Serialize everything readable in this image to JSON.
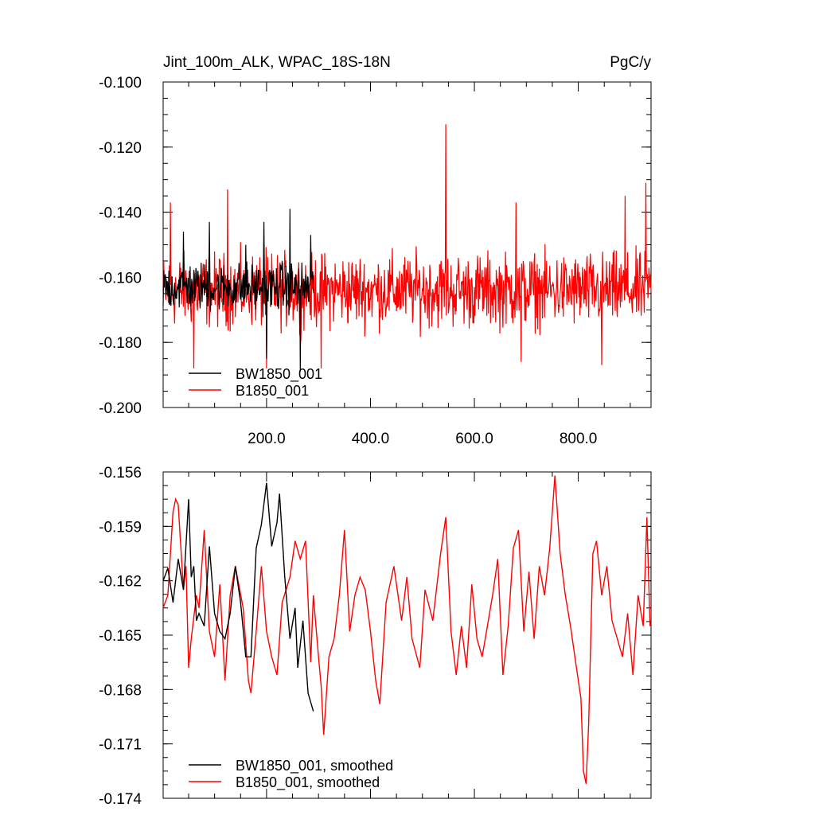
{
  "header": {
    "title_left": "Jint_100m_ALK, WPAC_18S-18N",
    "title_right": "PgC/y"
  },
  "colors": {
    "BW1850_001": "#000000",
    "B1850_001": "#ff0000"
  },
  "chart_data": [
    {
      "type": "line",
      "title": "Jint_100m_ALK, WPAC_18S-18N",
      "units": "PgC/y",
      "xlim": [
        1,
        940
      ],
      "ylim": [
        -0.2,
        -0.1
      ],
      "xticks": [
        200,
        400,
        600,
        800
      ],
      "xtick_labels": [
        "200.0",
        "400.0",
        "600.0",
        "800.0"
      ],
      "yticks": [
        -0.1,
        -0.12,
        -0.14,
        -0.16,
        -0.18,
        -0.2
      ],
      "ytick_labels": [
        "-0.100",
        "-0.120",
        "-0.140",
        "-0.160",
        "-0.180",
        "-0.200"
      ],
      "grid": false,
      "legend": "bottom-left",
      "series": [
        {
          "name": "BW1850_001",
          "color": "#000000",
          "x_range": [
            1,
            290
          ],
          "approx_mean": -0.163,
          "approx_range": [
            -0.189,
            -0.139
          ],
          "keypoints": [
            {
              "x": 40,
              "y": -0.146
            },
            {
              "x": 90,
              "y": -0.143
            },
            {
              "x": 160,
              "y": -0.15
            },
            {
              "x": 195,
              "y": -0.143
            },
            {
              "x": 200,
              "y": -0.185
            },
            {
              "x": 245,
              "y": -0.139
            },
            {
              "x": 265,
              "y": -0.189
            },
            {
              "x": 285,
              "y": -0.147
            }
          ]
        },
        {
          "name": "B1850_001",
          "color": "#ff0000",
          "x_range": [
            1,
            940
          ],
          "approx_mean": -0.164,
          "approx_range": [
            -0.188,
            -0.113
          ],
          "keypoints": [
            {
              "x": 15,
              "y": -0.137
            },
            {
              "x": 60,
              "y": -0.188
            },
            {
              "x": 125,
              "y": -0.133
            },
            {
              "x": 200,
              "y": -0.19
            },
            {
              "x": 305,
              "y": -0.19
            },
            {
              "x": 545,
              "y": -0.113
            },
            {
              "x": 680,
              "y": -0.137
            },
            {
              "x": 690,
              "y": -0.186
            },
            {
              "x": 845,
              "y": -0.187
            },
            {
              "x": 890,
              "y": -0.135
            },
            {
              "x": 930,
              "y": -0.131
            }
          ]
        }
      ]
    },
    {
      "type": "line",
      "xlim": [
        1,
        940
      ],
      "ylim": [
        -0.174,
        -0.156
      ],
      "xticks": [
        200,
        400,
        600,
        800
      ],
      "yticks": [
        -0.156,
        -0.159,
        -0.162,
        -0.165,
        -0.168,
        -0.171,
        -0.174
      ],
      "ytick_labels": [
        "-0.156",
        "-0.159",
        "-0.162",
        "-0.165",
        "-0.168",
        "-0.171",
        "-0.174"
      ],
      "grid": false,
      "legend": "bottom-left",
      "series": [
        {
          "name": "BW1850_001, smoothed",
          "color": "#000000",
          "points": [
            [
              1,
              -0.162
            ],
            [
              10,
              -0.1613
            ],
            [
              20,
              -0.1632
            ],
            [
              30,
              -0.1608
            ],
            [
              40,
              -0.1625
            ],
            [
              50,
              -0.1575
            ],
            [
              55,
              -0.1618
            ],
            [
              60,
              -0.1612
            ],
            [
              65,
              -0.1642
            ],
            [
              70,
              -0.1638
            ],
            [
              80,
              -0.1645
            ],
            [
              90,
              -0.1601
            ],
            [
              100,
              -0.1638
            ],
            [
              110,
              -0.1648
            ],
            [
              120,
              -0.1652
            ],
            [
              130,
              -0.1638
            ],
            [
              140,
              -0.1612
            ],
            [
              150,
              -0.1632
            ],
            [
              160,
              -0.1662
            ],
            [
              170,
              -0.1662
            ],
            [
              180,
              -0.1602
            ],
            [
              190,
              -0.1589
            ],
            [
              200,
              -0.1566
            ],
            [
              210,
              -0.1601
            ],
            [
              220,
              -0.1588
            ],
            [
              225,
              -0.1572
            ],
            [
              235,
              -0.1618
            ],
            [
              245,
              -0.1652
            ],
            [
              255,
              -0.1635
            ],
            [
              260,
              -0.1668
            ],
            [
              270,
              -0.1642
            ],
            [
              280,
              -0.1682
            ],
            [
              290,
              -0.1692
            ]
          ]
        },
        {
          "name": "B1850_001, smoothed",
          "color": "#ff0000",
          "points": [
            [
              1,
              -0.1635
            ],
            [
              10,
              -0.1628
            ],
            [
              20,
              -0.1582
            ],
            [
              25,
              -0.1575
            ],
            [
              30,
              -0.1578
            ],
            [
              40,
              -0.1625
            ],
            [
              45,
              -0.1612
            ],
            [
              50,
              -0.1668
            ],
            [
              55,
              -0.1652
            ],
            [
              65,
              -0.1628
            ],
            [
              70,
              -0.1635
            ],
            [
              80,
              -0.1592
            ],
            [
              90,
              -0.1648
            ],
            [
              100,
              -0.1662
            ],
            [
              110,
              -0.1622
            ],
            [
              120,
              -0.1675
            ],
            [
              130,
              -0.1628
            ],
            [
              140,
              -0.1612
            ],
            [
              155,
              -0.1635
            ],
            [
              165,
              -0.1675
            ],
            [
              170,
              -0.1682
            ],
            [
              180,
              -0.1648
            ],
            [
              190,
              -0.1612
            ],
            [
              200,
              -0.1648
            ],
            [
              210,
              -0.1662
            ],
            [
              220,
              -0.1672
            ],
            [
              230,
              -0.1632
            ],
            [
              245,
              -0.1618
            ],
            [
              255,
              -0.1598
            ],
            [
              265,
              -0.1608
            ],
            [
              275,
              -0.1598
            ],
            [
              285,
              -0.1665
            ],
            [
              290,
              -0.1628
            ],
            [
              300,
              -0.1662
            ],
            [
              305,
              -0.1678
            ],
            [
              310,
              -0.1705
            ],
            [
              320,
              -0.1662
            ],
            [
              330,
              -0.1652
            ],
            [
              340,
              -0.1628
            ],
            [
              350,
              -0.1592
            ],
            [
              360,
              -0.1648
            ],
            [
              370,
              -0.1628
            ],
            [
              380,
              -0.1618
            ],
            [
              390,
              -0.1625
            ],
            [
              400,
              -0.1648
            ],
            [
              410,
              -0.1675
            ],
            [
              418,
              -0.1688
            ],
            [
              430,
              -0.1632
            ],
            [
              445,
              -0.1612
            ],
            [
              460,
              -0.1642
            ],
            [
              470,
              -0.1618
            ],
            [
              480,
              -0.1652
            ],
            [
              495,
              -0.1668
            ],
            [
              505,
              -0.1625
            ],
            [
              520,
              -0.1642
            ],
            [
              535,
              -0.1605
            ],
            [
              545,
              -0.1585
            ],
            [
              555,
              -0.1648
            ],
            [
              565,
              -0.1672
            ],
            [
              575,
              -0.1645
            ],
            [
              585,
              -0.1668
            ],
            [
              595,
              -0.1622
            ],
            [
              605,
              -0.1652
            ],
            [
              615,
              -0.1662
            ],
            [
              625,
              -0.1645
            ],
            [
              635,
              -0.1628
            ],
            [
              645,
              -0.1608
            ],
            [
              655,
              -0.1672
            ],
            [
              665,
              -0.1645
            ],
            [
              675,
              -0.1602
            ],
            [
              685,
              -0.1592
            ],
            [
              695,
              -0.1648
            ],
            [
              705,
              -0.1615
            ],
            [
              715,
              -0.1652
            ],
            [
              725,
              -0.1612
            ],
            [
              735,
              -0.1628
            ],
            [
              745,
              -0.1602
            ],
            [
              755,
              -0.1562
            ],
            [
              765,
              -0.1605
            ],
            [
              775,
              -0.1628
            ],
            [
              785,
              -0.1645
            ],
            [
              795,
              -0.1665
            ],
            [
              805,
              -0.1685
            ],
            [
              810,
              -0.1725
            ],
            [
              815,
              -0.1732
            ],
            [
              820,
              -0.1698
            ],
            [
              828,
              -0.1605
            ],
            [
              835,
              -0.1598
            ],
            [
              845,
              -0.1628
            ],
            [
              855,
              -0.1612
            ],
            [
              865,
              -0.1642
            ],
            [
              875,
              -0.1652
            ],
            [
              885,
              -0.1662
            ],
            [
              895,
              -0.1638
            ],
            [
              905,
              -0.1672
            ],
            [
              915,
              -0.1628
            ],
            [
              925,
              -0.1645
            ],
            [
              932,
              -0.1585
            ],
            [
              938,
              -0.1645
            ]
          ]
        }
      ]
    }
  ],
  "legend_top": [
    "BW1850_001",
    "B1850_001"
  ],
  "legend_bottom": [
    "BW1850_001, smoothed",
    "B1850_001, smoothed"
  ]
}
